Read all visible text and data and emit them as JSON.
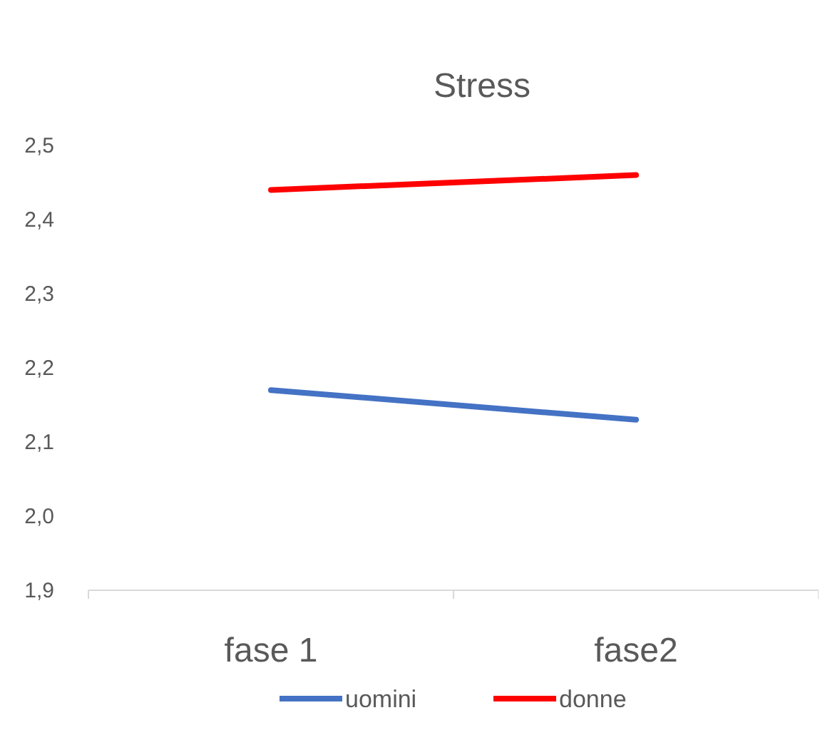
{
  "chart_data": {
    "type": "line",
    "title": "Stress",
    "categories": [
      "fase 1",
      "fase2"
    ],
    "series": [
      {
        "name": "uomini",
        "color": "#4472c4",
        "values": [
          2.17,
          2.13
        ]
      },
      {
        "name": "donne",
        "color": "#ff0000",
        "values": [
          2.44,
          2.46
        ]
      }
    ],
    "ylim": [
      1.9,
      2.5
    ],
    "yticks": [
      {
        "value": 1.9,
        "label": "1,9"
      },
      {
        "value": 2.0,
        "label": "2,0"
      },
      {
        "value": 2.1,
        "label": "2,1"
      },
      {
        "value": 2.2,
        "label": "2,2"
      },
      {
        "value": 2.3,
        "label": "2,3"
      },
      {
        "value": 2.4,
        "label": "2,4"
      },
      {
        "value": 2.5,
        "label": "2,5"
      }
    ],
    "grid": false,
    "legend": "bottom",
    "marker": "none",
    "line_style": "solid"
  }
}
